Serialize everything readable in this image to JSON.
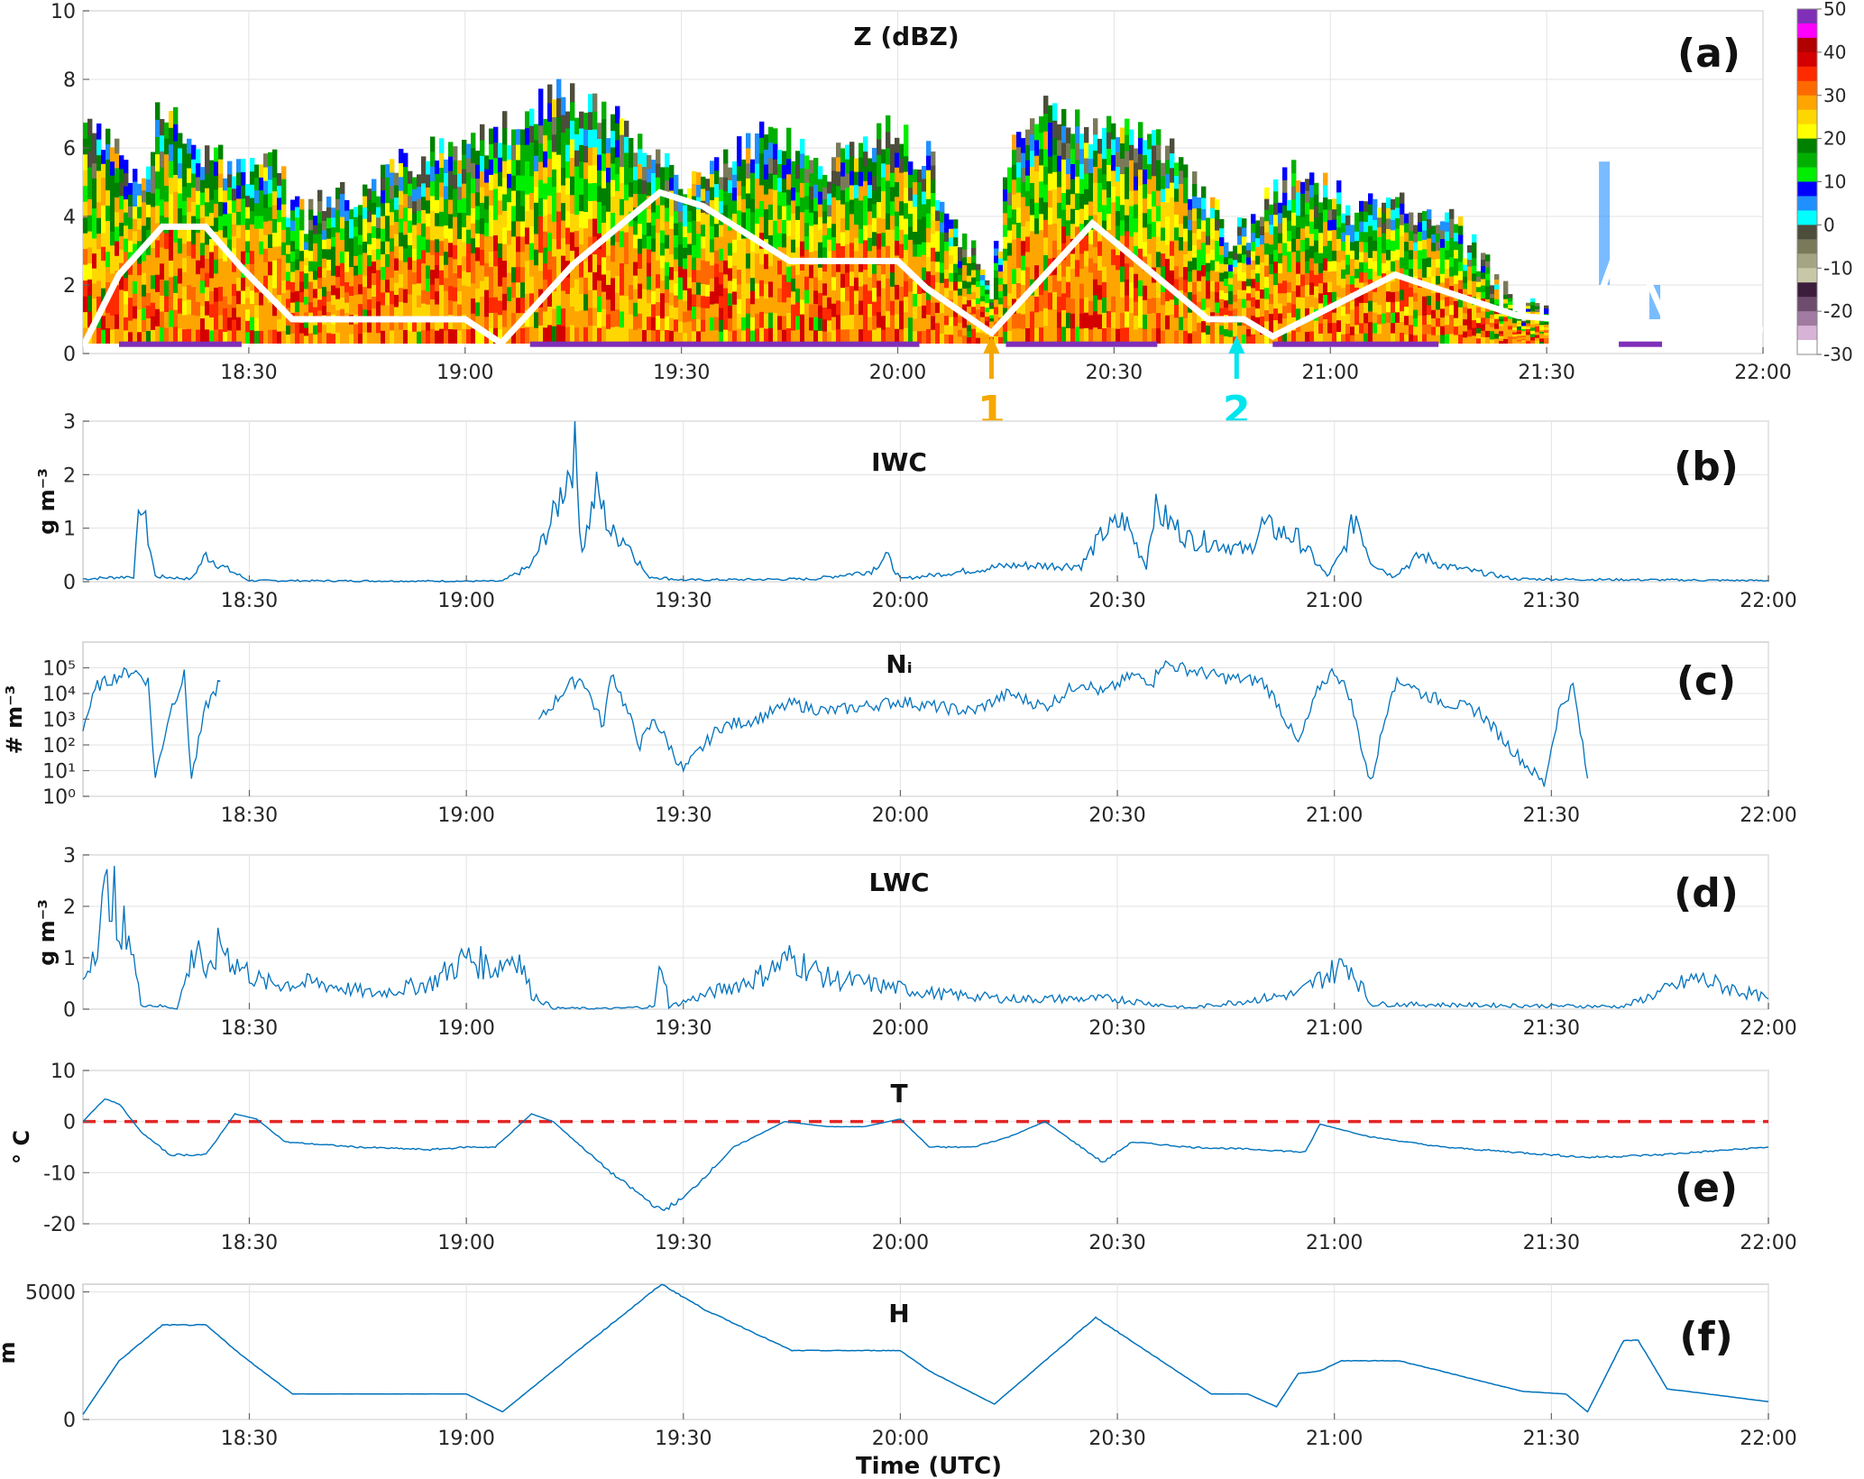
{
  "time_ticks": [
    "18:30",
    "19:00",
    "19:30",
    "20:00",
    "20:30",
    "21:00",
    "21:30",
    "22:00"
  ],
  "xlabel": "Time (UTC)",
  "panels": {
    "a": {
      "title": "Z (dBZ)",
      "label": "(a)",
      "yticks": [
        "0",
        "2",
        "4",
        "6",
        "8",
        "10"
      ]
    },
    "b": {
      "title": "IWC",
      "label": "(b)",
      "ylabel": "g m⁻³",
      "yticks": [
        "0",
        "1",
        "2",
        "3"
      ]
    },
    "c": {
      "title": "Nᵢ",
      "label": "(c)",
      "ylabel": "# m⁻³",
      "yticks": [
        "10⁰",
        "10¹",
        "10²",
        "10³",
        "10⁴",
        "10⁵"
      ]
    },
    "d": {
      "title": "LWC",
      "label": "(d)",
      "ylabel": "g m⁻³",
      "yticks": [
        "0",
        "1",
        "2",
        "3"
      ]
    },
    "e": {
      "title": "T",
      "label": "(e)",
      "ylabel": "° C",
      "yticks": [
        "-20",
        "-10",
        "0",
        "10"
      ]
    },
    "f": {
      "title": "H",
      "label": "(f)",
      "ylabel": "m",
      "yticks": [
        "0",
        "5000"
      ]
    }
  },
  "colorbar": {
    "ticks": [
      "50",
      "40",
      "30",
      "20",
      "10",
      "0",
      "-10",
      "-20",
      "-30"
    ],
    "colors": [
      "#7f2fb8",
      "#ff00ff",
      "#b00000",
      "#d40000",
      "#ff2a00",
      "#ff6a00",
      "#ffa500",
      "#ffd700",
      "#ffff00",
      "#008000",
      "#00b000",
      "#00ee00",
      "#0000ff",
      "#1e90ff",
      "#00ffff",
      "#4d4d3c",
      "#7a7a5a",
      "#a5a584",
      "#c8c8a8",
      "#3c1e3c",
      "#6e4c6e",
      "#a07aa0",
      "#d7b4d7",
      "#ffffff"
    ]
  },
  "annotations": [
    {
      "text": "1",
      "color": "#f5a800",
      "time": "20:13"
    },
    {
      "text": "2",
      "color": "#00e5ee",
      "time": "20:47"
    }
  ],
  "chart_data": [
    {
      "panel": "a",
      "type": "heatmap",
      "title": "Z (dBZ)",
      "x_range": [
        "18:07",
        "22:00"
      ],
      "ylim": [
        0,
        10
      ],
      "colorbar_range": [
        -30,
        50
      ],
      "aircraft_altitude_km": {
        "times": [
          "18:07",
          "18:12",
          "18:18",
          "18:24",
          "18:29",
          "18:36",
          "19:00",
          "19:05",
          "19:15",
          "19:27",
          "19:33",
          "19:45",
          "20:00",
          "20:04",
          "20:13",
          "20:27",
          "20:43",
          "20:48",
          "20:52",
          "21:09",
          "21:26",
          "21:32",
          "21:35",
          "21:40",
          "21:42",
          "21:46",
          "22:00"
        ],
        "values": [
          0.2,
          2.3,
          3.7,
          3.7,
          2.5,
          1.0,
          1.0,
          0.3,
          2.6,
          4.7,
          4.3,
          2.7,
          2.7,
          1.9,
          0.6,
          3.8,
          1.0,
          1.0,
          0.5,
          2.3,
          1.1,
          1.0,
          0.3,
          3.2,
          3.1,
          1.2,
          0.7
        ]
      }
    },
    {
      "panel": "b",
      "type": "line",
      "title": "IWC",
      "ylabel": "g m⁻³",
      "ylim": [
        0,
        3
      ],
      "x": [
        "18:07",
        "18:14",
        "18:15",
        "18:17",
        "18:22",
        "18:24",
        "18:26",
        "18:30",
        "19:00",
        "19:05",
        "19:09",
        "19:12",
        "19:15",
        "19:16",
        "19:18",
        "19:20",
        "19:22",
        "19:25",
        "19:30",
        "19:48",
        "19:56",
        "19:58",
        "20:00",
        "20:15",
        "20:25",
        "20:28",
        "20:31",
        "20:34",
        "20:35",
        "20:40",
        "20:45",
        "20:48",
        "20:50",
        "20:55",
        "20:59",
        "21:01",
        "21:03",
        "21:05",
        "21:08",
        "21:12",
        "21:15",
        "21:25",
        "22:00"
      ],
      "y": [
        0.05,
        0.1,
        1.55,
        0.1,
        0.05,
        0.5,
        0.3,
        0.02,
        0.01,
        0.01,
        0.3,
        1.2,
        2.45,
        0.6,
        1.7,
        0.9,
        0.8,
        0.1,
        0.03,
        0.05,
        0.2,
        0.5,
        0.05,
        0.3,
        0.3,
        0.9,
        1.15,
        0.3,
        1.35,
        0.8,
        0.7,
        0.55,
        1.05,
        0.8,
        0.1,
        0.5,
        1.25,
        0.4,
        0.1,
        0.5,
        0.3,
        0.05,
        0.02
      ]
    },
    {
      "panel": "c",
      "type": "line",
      "title": "Nᵢ",
      "ylabel": "# m⁻³",
      "y_scale": "log",
      "ylim": [
        1,
        1000000
      ],
      "x": [
        "18:07",
        "18:09",
        "18:12",
        "18:14",
        "18:16",
        "18:17",
        "18:19",
        "18:21",
        "18:22",
        "18:24",
        "18:26",
        "19:10",
        "19:14",
        "19:16",
        "19:19",
        "19:20",
        "19:22",
        "19:24",
        "19:26",
        "19:30",
        "19:35",
        "19:40",
        "19:45",
        "19:50",
        "20:00",
        "20:05",
        "20:10",
        "20:15",
        "20:20",
        "20:25",
        "20:28",
        "20:32",
        "20:35",
        "20:36",
        "20:45",
        "20:50",
        "20:52",
        "20:55",
        "20:58",
        "21:00",
        "21:02",
        "21:05",
        "21:08",
        "21:10",
        "21:12",
        "21:15",
        "21:20",
        "21:24",
        "21:29",
        "21:31",
        "21:33",
        "21:35"
      ],
      "y": [
        500,
        20000,
        50000,
        80000,
        30000,
        5,
        2000,
        50000,
        5,
        3000,
        30000,
        800,
        20000,
        40000,
        500,
        80000,
        3000,
        100,
        1000,
        10,
        500,
        1000,
        4000,
        2000,
        5000,
        3000,
        2000,
        10000,
        3000,
        30000,
        10000,
        50000,
        30000,
        150000,
        40000,
        30000,
        5000,
        100,
        20000,
        80000,
        10000,
        3,
        20000,
        30000,
        10000,
        5000,
        2000,
        100,
        3,
        2000,
        20000,
        5
      ]
    },
    {
      "panel": "d",
      "type": "line",
      "title": "LWC",
      "ylabel": "g m⁻³",
      "ylim": [
        0,
        3
      ],
      "x": [
        "18:07",
        "18:09",
        "18:11",
        "18:12",
        "18:13",
        "18:15",
        "18:20",
        "18:23",
        "18:24",
        "18:26",
        "18:28",
        "18:32",
        "18:40",
        "18:47",
        "18:55",
        "19:00",
        "19:04",
        "19:07",
        "19:09",
        "19:12",
        "19:20",
        "19:26",
        "19:27",
        "19:28",
        "19:40",
        "19:45",
        "19:50",
        "20:00",
        "20:05",
        "20:15",
        "20:30",
        "20:35",
        "20:40",
        "20:55",
        "20:58",
        "21:02",
        "21:05",
        "21:40",
        "21:50",
        "21:55",
        "22:00"
      ],
      "y": [
        0.5,
        1.5,
        2.6,
        1.0,
        1.8,
        0.1,
        0.02,
        1.4,
        0.5,
        1.3,
        0.9,
        0.5,
        0.5,
        0.3,
        0.5,
        1.0,
        0.8,
        1.1,
        0.3,
        0.02,
        0.01,
        0.05,
        1.0,
        0.05,
        0.6,
        1.0,
        0.6,
        0.4,
        0.3,
        0.2,
        0.2,
        0.1,
        0.02,
        0.3,
        0.6,
        0.9,
        0.1,
        0.05,
        0.6,
        0.4,
        0.2
      ]
    },
    {
      "panel": "e",
      "type": "line",
      "title": "T",
      "ylabel": "° C",
      "ylim": [
        -20,
        10
      ],
      "reference_line": {
        "y": 0,
        "color": "#e32626",
        "style": "dashed"
      },
      "x": [
        "18:07",
        "18:10",
        "18:12",
        "18:15",
        "18:19",
        "18:24",
        "18:28",
        "18:31",
        "18:35",
        "18:45",
        "18:55",
        "19:00",
        "19:04",
        "19:09",
        "19:12",
        "19:20",
        "19:27",
        "19:30",
        "19:37",
        "19:44",
        "19:50",
        "19:55",
        "20:00",
        "20:04",
        "20:10",
        "20:15",
        "20:20",
        "20:28",
        "20:32",
        "20:40",
        "20:50",
        "20:56",
        "20:58",
        "21:05",
        "21:15",
        "21:25",
        "21:35",
        "21:45",
        "22:00"
      ],
      "y": [
        0,
        4.5,
        3.5,
        -2,
        -6.5,
        -6.5,
        1.5,
        0.5,
        -4,
        -5,
        -5.5,
        -5,
        -5,
        1.5,
        0,
        -10,
        -17.5,
        -15,
        -5,
        0,
        -1,
        -1,
        0.5,
        -5,
        -5,
        -3,
        0,
        -8,
        -4,
        -5,
        -5.5,
        -6,
        -0.5,
        -3,
        -5,
        -6,
        -7,
        -6.5,
        -5
      ]
    },
    {
      "panel": "f",
      "type": "line",
      "title": "H",
      "ylabel": "m",
      "ylim": [
        0,
        5300
      ],
      "x": [
        "18:07",
        "18:12",
        "18:18",
        "18:24",
        "18:29",
        "18:36",
        "19:00",
        "19:05",
        "19:15",
        "19:27",
        "19:33",
        "19:45",
        "20:00",
        "20:04",
        "20:13",
        "20:27",
        "20:43",
        "20:48",
        "20:52",
        "20:55",
        "20:58",
        "21:01",
        "21:09",
        "21:26",
        "21:32",
        "21:35",
        "21:40",
        "21:42",
        "21:46",
        "22:00"
      ],
      "y": [
        200,
        2300,
        3700,
        3700,
        2500,
        1000,
        1000,
        300,
        2600,
        5300,
        4300,
        2700,
        2700,
        1900,
        600,
        4000,
        1000,
        1000,
        500,
        1800,
        1900,
        2300,
        2300,
        1100,
        1000,
        300,
        3100,
        3100,
        1200,
        700
      ]
    }
  ]
}
